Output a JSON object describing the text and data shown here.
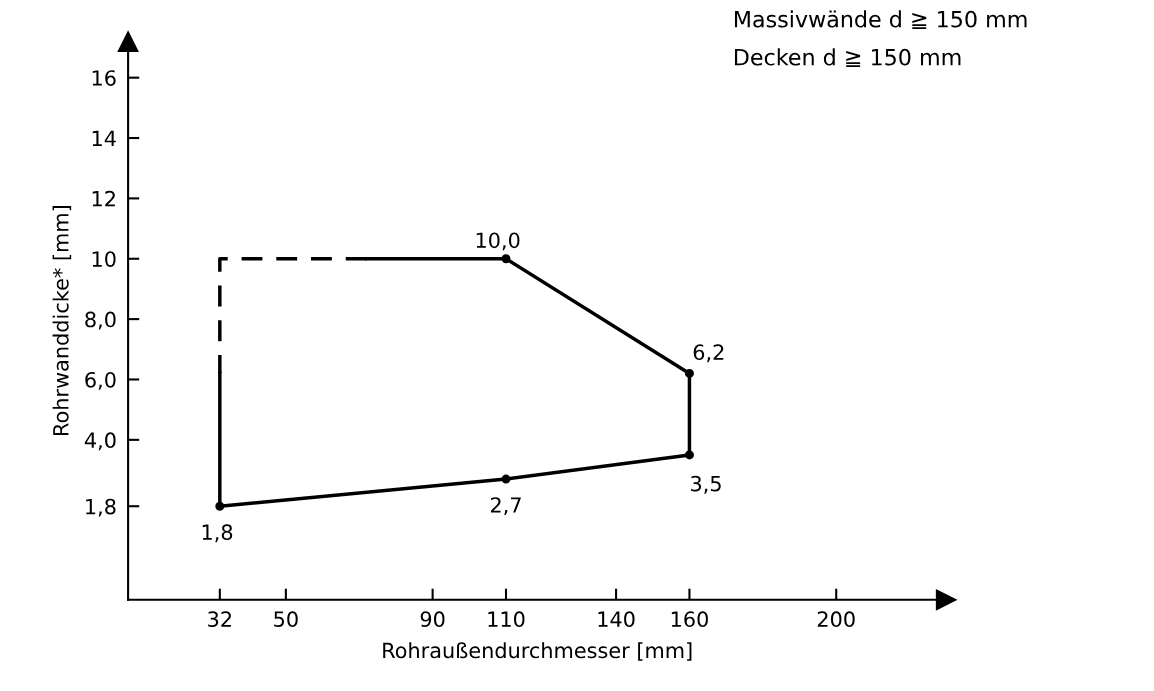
{
  "chart_data": {
    "type": "line",
    "xlabel": "Rohraußendurchmesser [mm]",
    "ylabel": "Rohrwanddicke* [mm]",
    "xlim": [
      7,
      230
    ],
    "ylim": [
      -1.3,
      17.2
    ],
    "xticks": [
      32,
      50,
      90,
      110,
      140,
      160,
      200
    ],
    "yticks": [
      {
        "value": 1.8,
        "label": "1,8"
      },
      {
        "value": 4,
        "label": "4,0"
      },
      {
        "value": 6,
        "label": "6,0"
      },
      {
        "value": 8,
        "label": "8,0"
      },
      {
        "value": 10,
        "label": "10"
      },
      {
        "value": 12,
        "label": "12"
      },
      {
        "value": 14,
        "label": "14"
      },
      {
        "value": 16,
        "label": "16"
      }
    ],
    "grid": false,
    "series": [
      {
        "line_style": "solid",
        "color": "#000000",
        "x": [
          32,
          32,
          110,
          160,
          160,
          110,
          72
        ],
        "values": [
          6.2,
          1.8,
          2.7,
          3.5,
          6.2,
          10,
          10
        ]
      },
      {
        "line_style": "dashed",
        "color": "#000000",
        "x": [
          72,
          32,
          32
        ],
        "values": [
          10,
          10,
          6.2
        ]
      },
      {
        "type": "scatter",
        "marker": "circle",
        "color": "#000000",
        "x": [
          32,
          110,
          160,
          160,
          110
        ],
        "values": [
          1.8,
          2.7,
          3.5,
          6.2,
          10
        ]
      }
    ],
    "annotations": [
      {
        "text": "1,8",
        "x": 32,
        "y": 1.8
      },
      {
        "text": "2,7",
        "x": 110,
        "y": 2.7
      },
      {
        "text": "3,5",
        "x": 160,
        "y": 3.5
      },
      {
        "text": "6,2",
        "x": 160,
        "y": 6.2
      },
      {
        "text": "10,0",
        "x": 110,
        "y": 10
      },
      "Massivwände d ≧ 150 mm",
      "Decken d ≧ 150 mm"
    ]
  }
}
